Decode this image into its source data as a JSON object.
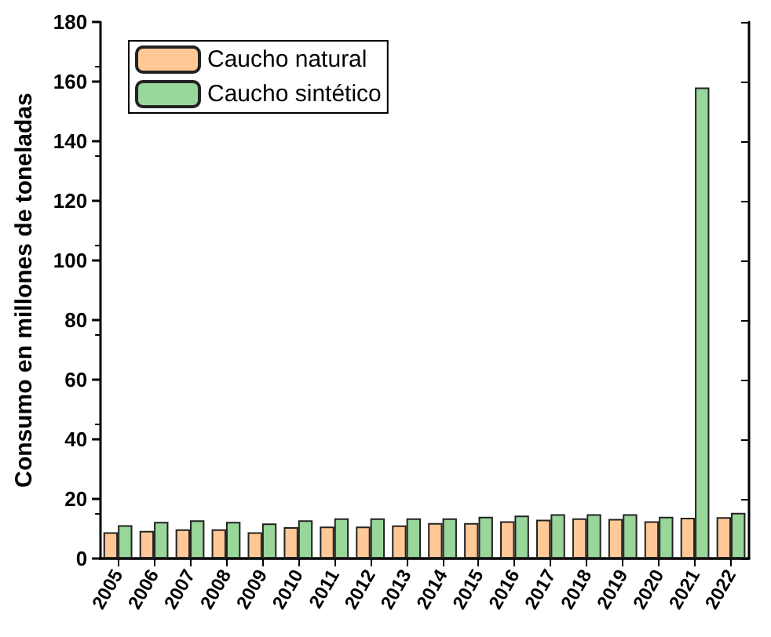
{
  "chart_data": {
    "type": "bar",
    "ylabel": "Consumo en millones de toneladas",
    "categories": [
      "2005",
      "2006",
      "2007",
      "2008",
      "2009",
      "2010",
      "2011",
      "2012",
      "2013",
      "2014",
      "2015",
      "2016",
      "2017",
      "2018",
      "2019",
      "2020",
      "2021",
      "2022"
    ],
    "series": [
      {
        "name": "Caucho natural",
        "color": "#ffc896",
        "values": [
          8.8,
          9.3,
          9.8,
          9.8,
          8.8,
          10.5,
          10.7,
          10.7,
          11.1,
          11.9,
          11.9,
          12.5,
          13,
          13.5,
          13.3,
          12.5,
          13.7,
          13.9
        ]
      },
      {
        "name": "Caucho sintético",
        "color": "#98d69a",
        "values": [
          11.2,
          12.3,
          12.8,
          12.3,
          11.8,
          12.8,
          13.5,
          13.5,
          13.5,
          13.5,
          14,
          14.4,
          14.9,
          14.9,
          14.9,
          14,
          158,
          15.3
        ]
      }
    ],
    "ylim": [
      0,
      180
    ],
    "yticks": [
      0,
      20,
      40,
      60,
      80,
      100,
      120,
      140,
      160,
      180
    ],
    "grid": false,
    "legend": "top left"
  }
}
